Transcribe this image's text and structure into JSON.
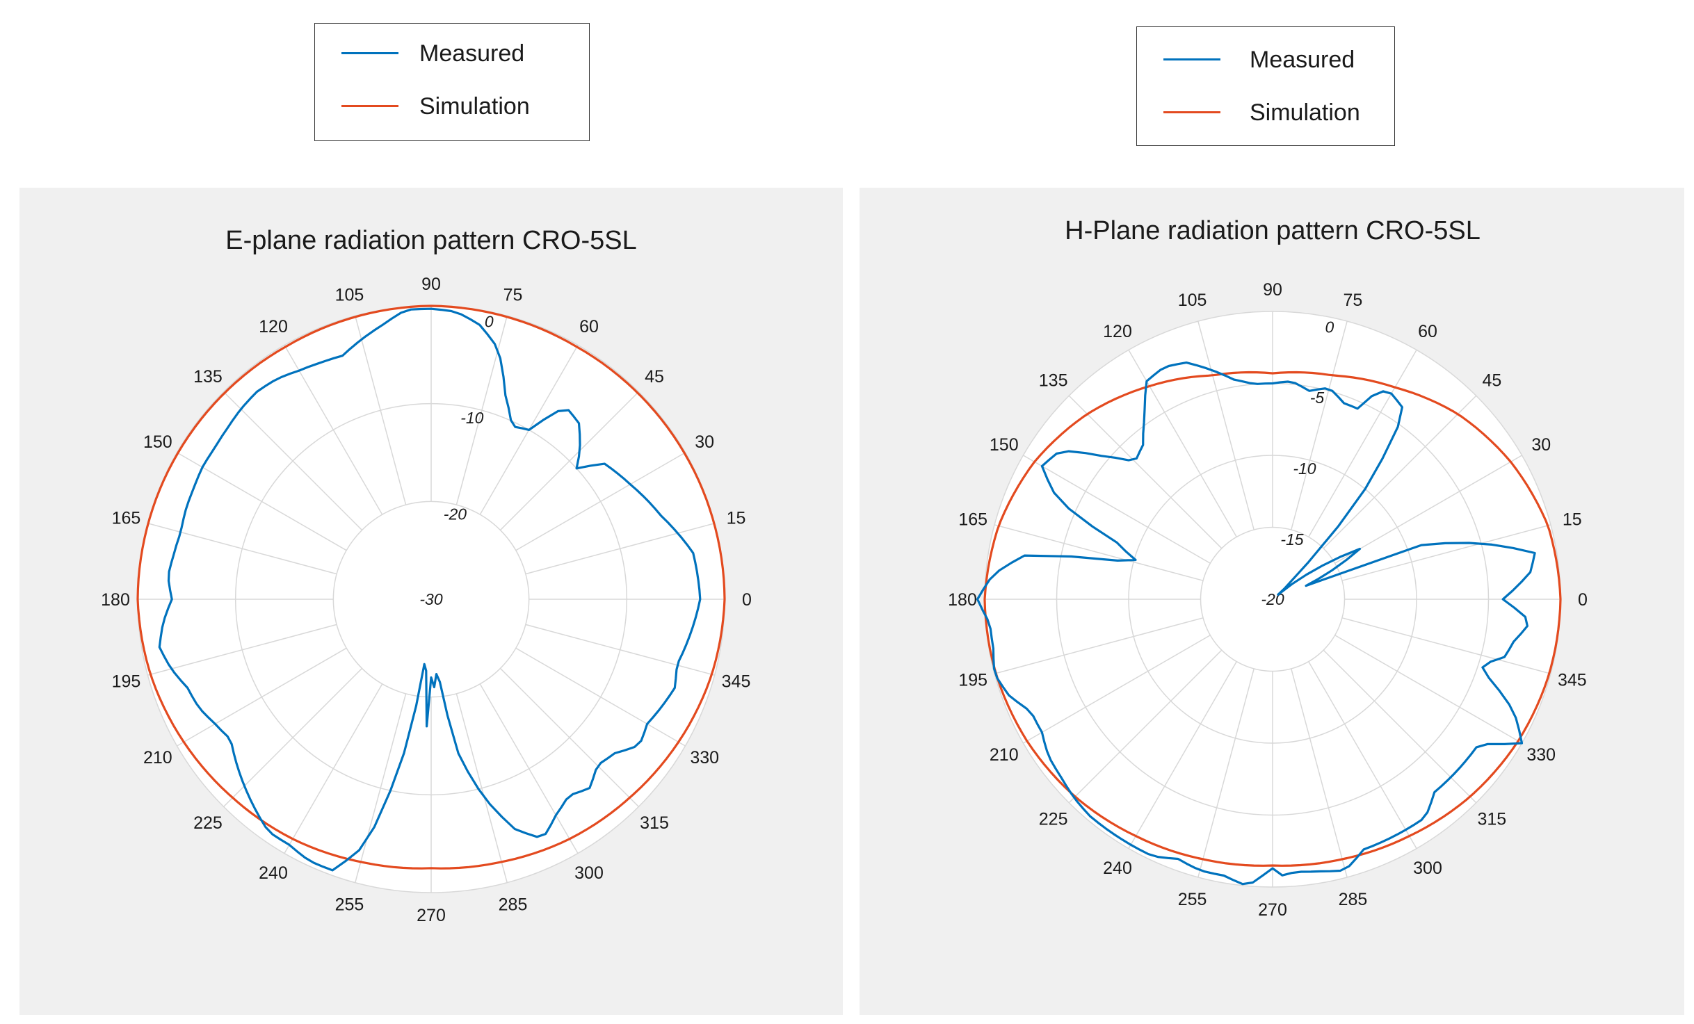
{
  "colors": {
    "measured": "#0072bd",
    "simulation": "#e34a1f",
    "grid": "#d8d8d8",
    "panel_bg": "#f0f0f0"
  },
  "legends": [
    {
      "items": [
        {
          "label": "Measured",
          "color": "#0072bd"
        },
        {
          "label": "Simulation",
          "color": "#e34a1f"
        }
      ]
    },
    {
      "items": [
        {
          "label": "Measured",
          "color": "#0072bd"
        },
        {
          "label": "Simulation",
          "color": "#e34a1f"
        }
      ]
    }
  ],
  "chart_data": [
    {
      "type": "line",
      "projection": "polar",
      "title": "E-plane radiation pattern CRO-5SL",
      "theta_unit": "deg",
      "theta_ticks": [
        "0",
        "15",
        "30",
        "45",
        "60",
        "75",
        "90",
        "105",
        "120",
        "135",
        "150",
        "165",
        "180",
        "195",
        "210",
        "225",
        "240",
        "255",
        "270",
        "285",
        "300",
        "315",
        "330",
        "345"
      ],
      "r_ticks": [
        "0",
        "-10",
        "-20",
        "-30"
      ],
      "rlim": [
        -30,
        0
      ],
      "grid": true,
      "legend": {
        "position": "top-left",
        "entries": [
          "Measured",
          "Simulation"
        ]
      },
      "series": [
        {
          "name": "Measured",
          "theta": [
            0,
            10,
            20,
            30,
            38,
            42,
            45,
            50,
            55,
            60,
            65,
            70,
            75,
            80,
            85,
            90,
            95,
            100,
            105,
            110,
            115,
            120,
            125,
            130,
            135,
            140,
            145,
            150,
            155,
            160,
            165,
            170,
            175,
            180,
            185,
            190,
            195,
            200,
            205,
            210,
            215,
            220,
            225,
            230,
            235,
            240,
            245,
            250,
            255,
            260,
            262,
            265,
            268,
            270,
            272,
            275,
            277,
            280,
            285,
            290,
            295,
            300,
            305,
            310,
            315,
            320,
            325,
            330,
            335,
            340,
            345,
            350,
            355,
            360
          ],
          "r": [
            -2.5,
            -2.8,
            -5.0,
            -6.5,
            -7.5,
            -10.0,
            -8.5,
            -6.5,
            -6.0,
            -10.0,
            -10.5,
            -7.8,
            -3.5,
            -1.5,
            -0.5,
            -0.3,
            -0.3,
            -1.5,
            -2.5,
            -3.5,
            -3.3,
            -3.0,
            -2.5,
            -2.3,
            -2.5,
            -2.8,
            -3.0,
            -3.0,
            -3.2,
            -3.3,
            -3.5,
            -3.3,
            -3.0,
            -3.5,
            -2.5,
            -1.8,
            -2.5,
            -3.5,
            -3.8,
            -4.5,
            -5.0,
            -4.0,
            -3.0,
            -2.0,
            -1.0,
            -1.0,
            -0.5,
            -0.5,
            -4.0,
            -14.0,
            -19.0,
            -25.5,
            -17.0,
            -22.0,
            -21.0,
            -23.0,
            -20.0,
            -14.0,
            -9.0,
            -5.0,
            -3.0,
            -4.5,
            -5.5,
            -4.8,
            -6.0,
            -5.5,
            -4.0,
            -4.5,
            -4.0,
            -3.5,
            -4.0,
            -3.5,
            -3.0,
            -2.5
          ]
        },
        {
          "name": "Simulation",
          "theta": [
            0,
            15,
            30,
            45,
            60,
            75,
            90,
            105,
            120,
            135,
            150,
            165,
            180,
            195,
            210,
            225,
            240,
            255,
            270,
            285,
            300,
            315,
            330,
            345,
            360
          ],
          "r": [
            0.0,
            -0.05,
            -0.1,
            -0.15,
            -0.2,
            -0.1,
            0.0,
            -0.1,
            -0.2,
            -0.15,
            -0.1,
            -0.05,
            0.0,
            -0.3,
            -0.8,
            -1.3,
            -1.7,
            -2.2,
            -2.5,
            -2.2,
            -1.7,
            -1.3,
            -0.8,
            -0.3,
            0.0
          ]
        }
      ]
    },
    {
      "type": "line",
      "projection": "polar",
      "title": "H-Plane radiation pattern CRO-5SL",
      "theta_unit": "deg",
      "theta_ticks": [
        "0",
        "15",
        "30",
        "45",
        "60",
        "75",
        "90",
        "105",
        "120",
        "135",
        "150",
        "165",
        "180",
        "195",
        "210",
        "225",
        "240",
        "255",
        "270",
        "285",
        "300",
        "315",
        "330",
        "345"
      ],
      "r_ticks": [
        "0",
        "-5",
        "-10",
        "-15",
        "-20"
      ],
      "rlim": [
        -20,
        0
      ],
      "grid": true,
      "legend": {
        "position": "top-right",
        "entries": [
          "Measured",
          "Simulation"
        ]
      },
      "series": [
        {
          "name": "Measured",
          "theta": [
            0,
            3,
            6,
            10,
            15,
            20,
            22,
            25,
            30,
            35,
            40,
            45,
            50,
            55,
            60,
            63,
            66,
            70,
            75,
            80,
            85,
            90,
            95,
            100,
            105,
            110,
            115,
            120,
            125,
            130,
            135,
            140,
            145,
            150,
            155,
            160,
            165,
            170,
            175,
            180,
            185,
            190,
            195,
            200,
            205,
            210,
            215,
            220,
            225,
            230,
            235,
            240,
            245,
            250,
            255,
            260,
            265,
            268,
            270,
            272,
            275,
            280,
            285,
            290,
            295,
            300,
            305,
            310,
            315,
            320,
            325,
            330,
            335,
            340,
            343,
            345,
            350,
            355,
            360
          ],
          "r": [
            -4.0,
            -3.0,
            -2.0,
            -1.5,
            -5.0,
            -9.0,
            -17.5,
            -16.0,
            -13.0,
            -16.5,
            -19.5,
            -18.0,
            -10.0,
            -4.0,
            -3.5,
            -3.7,
            -5.5,
            -5.5,
            -4.8,
            -5.3,
            -4.8,
            -5.0,
            -5.0,
            -4.5,
            -3.5,
            -2.5,
            -2.2,
            -2.5,
            -4.5,
            -6.0,
            -6.5,
            -4.5,
            -2.0,
            -1.5,
            -3.5,
            -8.5,
            -10.5,
            -2.5,
            -0.5,
            0.5,
            -0.3,
            -0.3,
            0.0,
            -0.5,
            -1.5,
            -1.5,
            -1.0,
            -0.8,
            -0.5,
            -0.3,
            -0.3,
            -0.3,
            -0.3,
            -0.8,
            -0.5,
            -0.5,
            0.0,
            -0.8,
            -1.3,
            -0.8,
            -1.0,
            -0.8,
            -0.5,
            -1.5,
            -1.5,
            -1.5,
            -1.5,
            -2.5,
            -2.5,
            -2.5,
            -2.5,
            0.0,
            -1.5,
            -4.0,
            -5.0,
            -3.5,
            -3.0,
            -2.0,
            -4.0
          ]
        },
        {
          "name": "Simulation",
          "theta": [
            0,
            15,
            30,
            45,
            60,
            75,
            90,
            105,
            120,
            135,
            150,
            165,
            180,
            195,
            210,
            225,
            240,
            255,
            270,
            285,
            300,
            315,
            330,
            345,
            360
          ],
          "r": [
            0.0,
            -0.2,
            -0.9,
            -1.8,
            -3.0,
            -3.9,
            -4.3,
            -3.9,
            -2.9,
            -1.8,
            -0.9,
            -0.3,
            0.0,
            -0.1,
            -0.3,
            -0.6,
            -1.0,
            -1.3,
            -1.5,
            -1.3,
            -1.0,
            -0.6,
            -0.3,
            -0.1,
            0.0
          ]
        }
      ]
    }
  ]
}
